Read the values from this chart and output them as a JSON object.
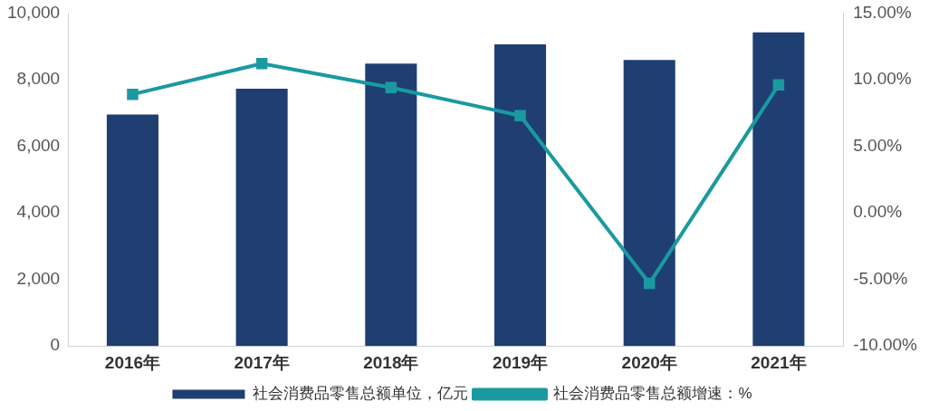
{
  "chart_data": {
    "type": "bar",
    "categories": [
      "2016年",
      "2017年",
      "2018年",
      "2019年",
      "2020年",
      "2021年"
    ],
    "series": [
      {
        "name": "社会消费品零售总额单位，亿元",
        "color": "#1f3f73",
        "values": [
          6950,
          7730,
          8480,
          9060,
          8590,
          9420
        ]
      },
      {
        "name": "社会消费品零售总额增速：%",
        "type": "line",
        "axis": "y2",
        "color": "#1a9aa0",
        "values": [
          8.9,
          11.2,
          9.4,
          7.3,
          -5.3,
          9.6
        ]
      }
    ],
    "ylim": [
      0,
      10000
    ],
    "yticks": [
      {
        "value": 0,
        "label": "0"
      },
      {
        "value": 2000,
        "label": "2,000"
      },
      {
        "value": 4000,
        "label": "4,000"
      },
      {
        "value": 6000,
        "label": "6,000"
      },
      {
        "value": 8000,
        "label": "8,000"
      },
      {
        "value": 10000,
        "label": "10,000"
      }
    ],
    "y2lim": [
      -10,
      15
    ],
    "y2ticks": [
      {
        "value": -10,
        "label": "-10.00%"
      },
      {
        "value": -5,
        "label": "-5.00%"
      },
      {
        "value": 0,
        "label": "0.00%"
      },
      {
        "value": 5,
        "label": "5.00%"
      },
      {
        "value": 10,
        "label": "10.00%"
      },
      {
        "value": 15,
        "label": "15.00%"
      }
    ],
    "grid": false,
    "legend": "bottom",
    "marker": "square",
    "line_style": "solid"
  }
}
